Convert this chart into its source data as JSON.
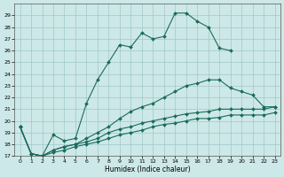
{
  "xlabel": "Humidex (Indice chaleur)",
  "bg_color": "#cde8e8",
  "line_color": "#1a6b5a",
  "grid_color": "#a0c8c8",
  "xlim": [
    -0.5,
    23.5
  ],
  "ylim": [
    17,
    30
  ],
  "yticks": [
    17,
    18,
    19,
    20,
    21,
    22,
    23,
    24,
    25,
    26,
    27,
    28,
    29
  ],
  "xticks": [
    0,
    1,
    2,
    3,
    4,
    5,
    6,
    7,
    8,
    9,
    10,
    11,
    12,
    13,
    14,
    15,
    16,
    17,
    18,
    19,
    20,
    21,
    22,
    23
  ],
  "series": [
    {
      "x": [
        0,
        1,
        2,
        3,
        4,
        5,
        6,
        7,
        8,
        9,
        10,
        11,
        12,
        13,
        14,
        15,
        16,
        17,
        18,
        19
      ],
      "y": [
        19.5,
        17.2,
        17.0,
        18.8,
        18.3,
        18.5,
        21.5,
        23.5,
        25.0,
        26.5,
        26.3,
        27.5,
        27.0,
        27.2,
        29.2,
        29.2,
        28.5,
        28.0,
        26.2,
        26.0
      ]
    },
    {
      "x": [
        0,
        1,
        2,
        3,
        4,
        5,
        6,
        7,
        8,
        9,
        10,
        11,
        12,
        13,
        14,
        15,
        16,
        17,
        18,
        19,
        20,
        21,
        22,
        23
      ],
      "y": [
        19.5,
        17.2,
        17.0,
        17.5,
        17.8,
        18.0,
        18.5,
        19.0,
        19.5,
        20.2,
        20.8,
        21.2,
        21.5,
        22.0,
        22.5,
        23.0,
        23.2,
        23.5,
        23.5,
        22.8,
        22.5,
        22.2,
        21.2,
        21.2
      ]
    },
    {
      "x": [
        0,
        1,
        2,
        3,
        4,
        5,
        6,
        7,
        8,
        9,
        10,
        11,
        12,
        13,
        14,
        15,
        16,
        17,
        18,
        19,
        20,
        21,
        22,
        23
      ],
      "y": [
        19.5,
        17.2,
        17.0,
        17.5,
        17.8,
        18.0,
        18.2,
        18.5,
        19.0,
        19.3,
        19.5,
        19.8,
        20.0,
        20.2,
        20.4,
        20.6,
        20.7,
        20.8,
        21.0,
        21.0,
        21.0,
        21.0,
        21.0,
        21.2
      ]
    },
    {
      "x": [
        0,
        1,
        2,
        3,
        4,
        5,
        6,
        7,
        8,
        9,
        10,
        11,
        12,
        13,
        14,
        15,
        16,
        17,
        18,
        19,
        20,
        21,
        22,
        23
      ],
      "y": [
        19.5,
        17.2,
        17.0,
        17.3,
        17.5,
        17.8,
        18.0,
        18.2,
        18.5,
        18.8,
        19.0,
        19.2,
        19.5,
        19.7,
        19.8,
        20.0,
        20.2,
        20.2,
        20.3,
        20.5,
        20.5,
        20.5,
        20.5,
        20.7
      ]
    }
  ]
}
